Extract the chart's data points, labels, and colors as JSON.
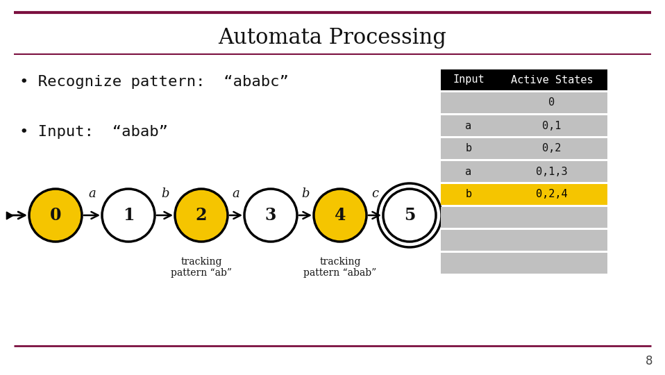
{
  "title": "Automata Processing",
  "bullet1": "Recognize pattern:  “ababc”",
  "bullet2": "Input:  “abab”",
  "bg_color": "#ffffff",
  "header_line_color": "#7b1040",
  "footer_line_color": "#7b1040",
  "nodes": [
    {
      "id": 0,
      "label": "0",
      "fill": "#f5c500",
      "double": false
    },
    {
      "id": 1,
      "label": "1",
      "fill": "#ffffff",
      "double": false
    },
    {
      "id": 2,
      "label": "2",
      "fill": "#f5c500",
      "double": false
    },
    {
      "id": 3,
      "label": "3",
      "fill": "#ffffff",
      "double": false
    },
    {
      "id": 4,
      "label": "4",
      "fill": "#f5c500",
      "double": false
    },
    {
      "id": 5,
      "label": "5",
      "fill": "#ffffff",
      "double": true
    }
  ],
  "edges": [
    {
      "from": 0,
      "to": 1,
      "label": "a"
    },
    {
      "from": 1,
      "to": 2,
      "label": "b"
    },
    {
      "from": 2,
      "to": 3,
      "label": "a"
    },
    {
      "from": 3,
      "to": 4,
      "label": "b"
    },
    {
      "from": 4,
      "to": 5,
      "label": "c"
    }
  ],
  "table": {
    "col_headers": [
      "Input",
      "Active States"
    ],
    "rows": [
      {
        "input": "",
        "states": "0",
        "highlight": false
      },
      {
        "input": "a",
        "states": "0,1",
        "highlight": false
      },
      {
        "input": "b",
        "states": "0,2",
        "highlight": false
      },
      {
        "input": "a",
        "states": "0,1,3",
        "highlight": false
      },
      {
        "input": "b",
        "states": "0,2,4",
        "highlight": true
      },
      {
        "input": "",
        "states": "",
        "highlight": false
      },
      {
        "input": "",
        "states": "",
        "highlight": false
      },
      {
        "input": "",
        "states": "",
        "highlight": false
      }
    ],
    "header_bg": "#000000",
    "header_fg": "#ffffff",
    "row_bg": "#c0c0c0",
    "gap_color": "#ffffff",
    "highlight_bg": "#f5c500",
    "highlight_fg": "#000000"
  },
  "page_num": "8"
}
